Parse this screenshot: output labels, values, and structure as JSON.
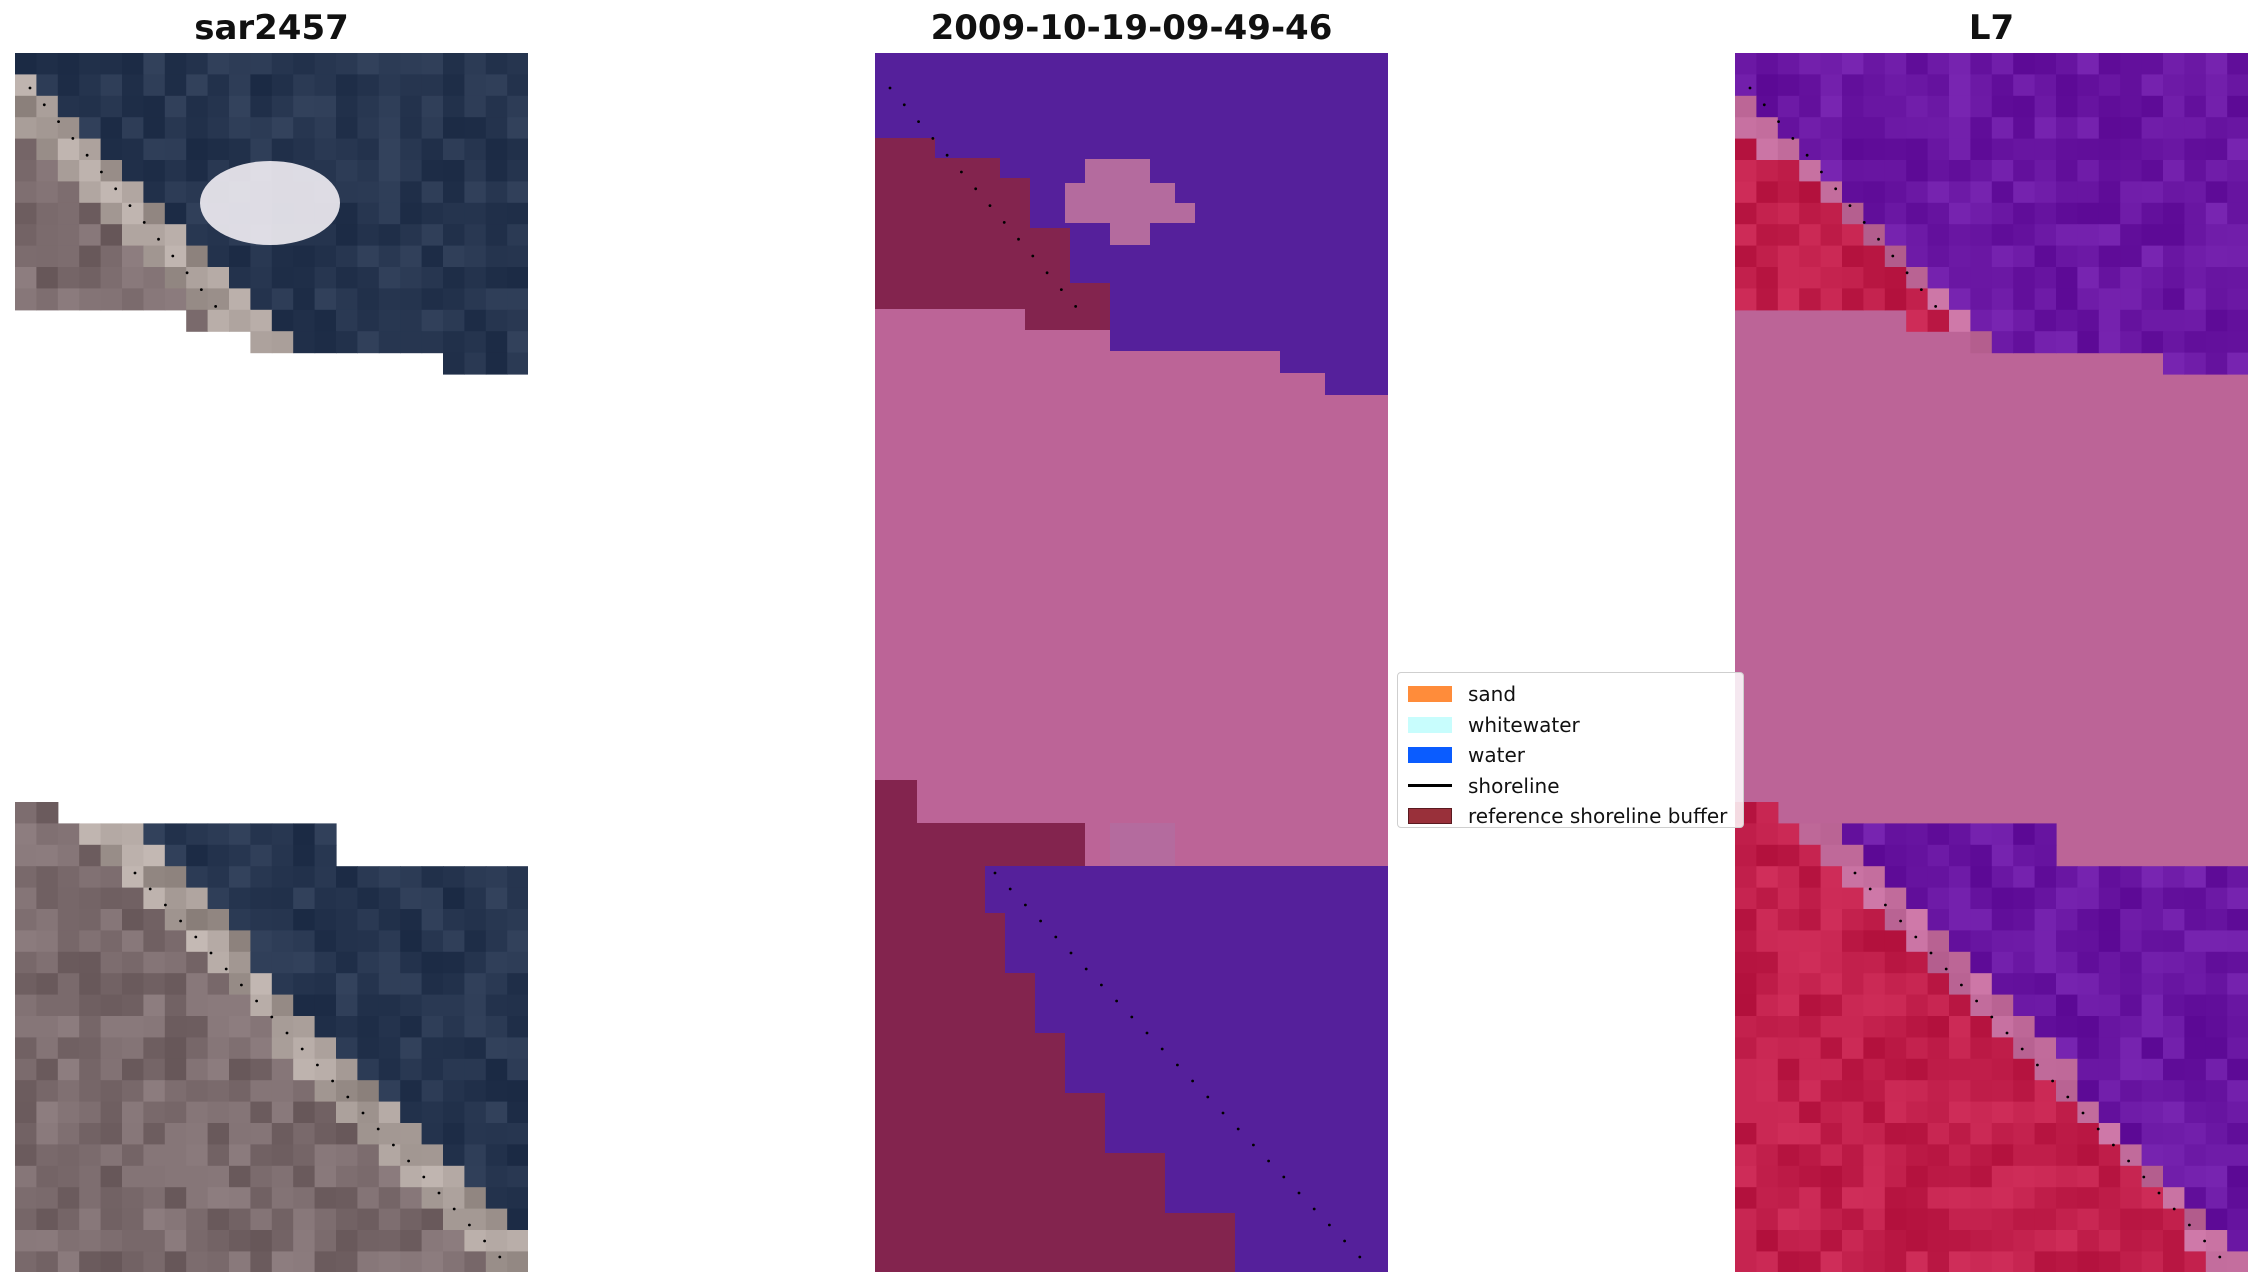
{
  "panels": [
    {
      "title": "sar2457"
    },
    {
      "title": "2009-10-19-09-49-46"
    },
    {
      "title": "L7"
    }
  ],
  "legend": {
    "items": [
      {
        "label": "sand",
        "color": "#ff8c3a",
        "kind": "patch"
      },
      {
        "label": "whitewater",
        "color": "#c8fdfd",
        "kind": "patch"
      },
      {
        "label": "water",
        "color": "#0a5cff",
        "kind": "patch"
      },
      {
        "label": "shoreline",
        "color": "#000000",
        "kind": "line"
      },
      {
        "label": "reference shoreline buffer",
        "color": "#99303a",
        "kind": "patch"
      }
    ]
  },
  "colors": {
    "rgb_water": "#273650",
    "rgb_land": "#7a6a6c",
    "rgb_bright": "#f2eef4",
    "class_water": "#55209b",
    "class_buffer": "#bc6497",
    "class_land": "#83244e",
    "class_whitewater_overlay": "#b46b9e",
    "l7_water": "#6a17a3",
    "l7_land": "#c11f4b",
    "l7_buffer": "#bc6497"
  }
}
